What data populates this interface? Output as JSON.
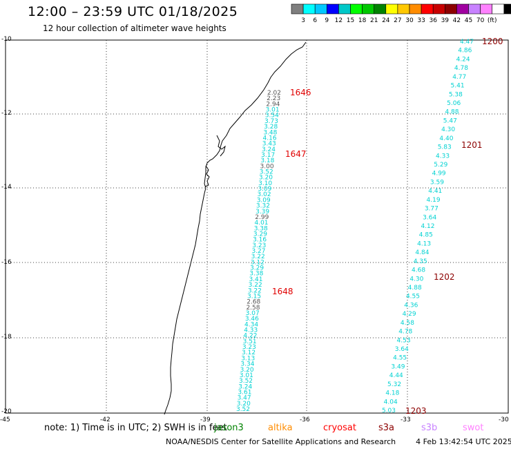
{
  "header": {
    "title": "12:00 – 23:59 UTC 01/18/2025",
    "subtitle": "12 hour collection of altimeter wave heights"
  },
  "colorbar": {
    "colors": [
      "#7f7f7f",
      "#00ffff",
      "#00c8ff",
      "#0000ff",
      "#00c8c8",
      "#00ff00",
      "#00c800",
      "#008200",
      "#ffff00",
      "#ffc800",
      "#ff8c00",
      "#ff0000",
      "#c80000",
      "#8c0000",
      "#a000a0",
      "#c882ff",
      "#ff82ff",
      "#ffffff",
      "#000000"
    ],
    "labels": [
      "3",
      "6",
      "9",
      "12",
      "15",
      "18",
      "21",
      "24",
      "27",
      "30",
      "33",
      "36",
      "39",
      "42",
      "45",
      "70",
      "(ft)"
    ]
  },
  "axes": {
    "y_labels": [
      "-10",
      "-12",
      "-14",
      "-16",
      "-18",
      "-20"
    ],
    "x_labels": [
      "-45",
      "-42",
      "-39",
      "-36",
      "-33",
      "-30"
    ]
  },
  "tracks": [
    {
      "name": "left",
      "time_labels": [
        "1646",
        "1647",
        "1648"
      ],
      "values": [
        "2.02",
        "2.23",
        "2.94",
        "3.01",
        "3.54",
        "3.73",
        "3.28",
        "3.48",
        "4.16",
        "3.43",
        "3.24",
        "3.17",
        "3.18",
        "3.00",
        "3.52",
        "3.20",
        "3.10",
        "3.09",
        "3.02",
        "3.09",
        "3.32",
        "3.39",
        "2.99",
        "4.01",
        "3.38",
        "3.29",
        "3.16",
        "3.23",
        "3.27",
        "3.22",
        "3.12",
        "3.29",
        "3.38",
        "3.41",
        "3.22",
        "3.22",
        "3.15",
        "2.68",
        "2.58",
        "3.07",
        "3.46",
        "4.34",
        "4.33",
        "4.22",
        "3.51",
        "3.23",
        "3.12",
        "3.13",
        "3.34",
        "3.20",
        "3.01",
        "3.52",
        "3.24",
        "3.61",
        "3.47",
        "3.20",
        "3.52"
      ]
    },
    {
      "name": "right",
      "time_labels": [
        "1200",
        "1201",
        "1202",
        "1203"
      ],
      "values": [
        "4.47",
        "4.86",
        "4.24",
        "4.78",
        "4.77",
        "5.41",
        "5.38",
        "5.06",
        "4.88",
        "5.47",
        "4.30",
        "4.40",
        "5.83",
        "4.33",
        "5.29",
        "4.99",
        "3.59",
        "4.41",
        "4.19",
        "3.77",
        "3.64",
        "4.12",
        "4.85",
        "4.13",
        "4.84",
        "4.35",
        "4.68",
        "4.30",
        "4.88",
        "4.55",
        "4.36",
        "4.29",
        "4.58",
        "4.78",
        "4.53",
        "3.64",
        "4.55",
        "3.49",
        "4.44",
        "5.32",
        "4.18",
        "4.04",
        "5.03"
      ]
    }
  ],
  "note": {
    "text": "note:  1) Time is in UTC; 2) SWH is in feet",
    "satellites": [
      {
        "name": "jason3",
        "color": "#008200"
      },
      {
        "name": "altika",
        "color": "#ff8c00"
      },
      {
        "name": "cryosat",
        "color": "#ff0000"
      },
      {
        "name": "s3a",
        "color": "#8c0000"
      },
      {
        "name": "s3b",
        "color": "#c882ff"
      },
      {
        "name": "swot",
        "color": "#ff82ff"
      }
    ]
  },
  "footer": {
    "credit": "NOAA/NESDIS Center for Satellite Applications and Research",
    "timestamp": "4 Feb 13:42:54 UTC 2025"
  }
}
